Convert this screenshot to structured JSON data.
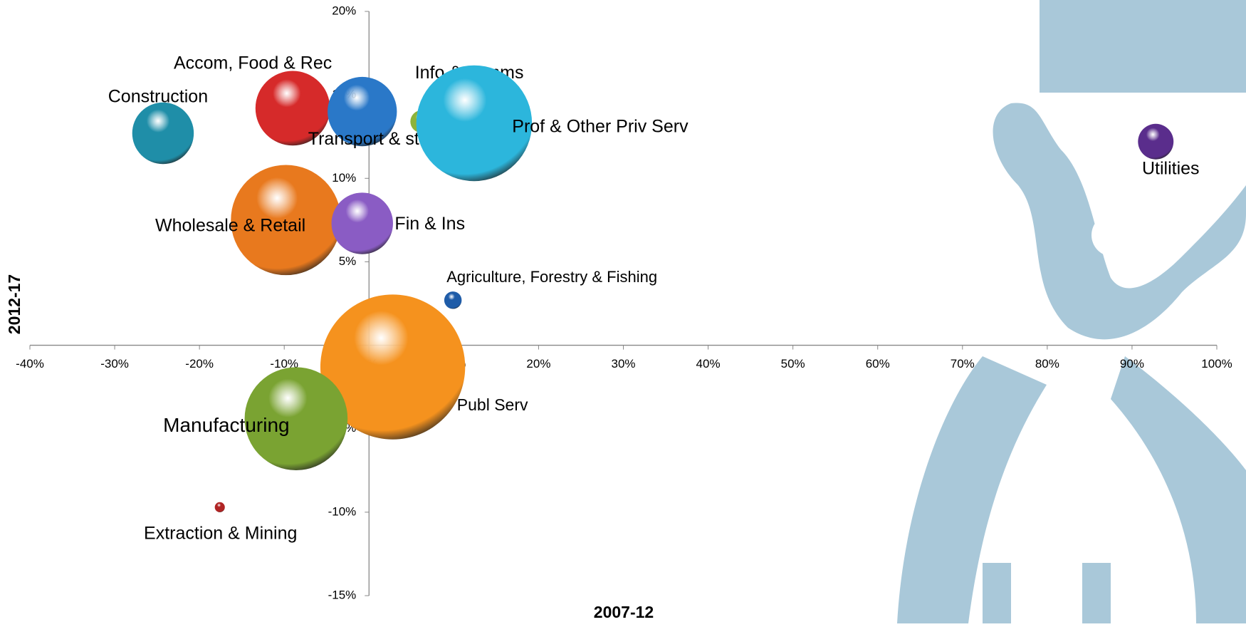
{
  "chart_data": {
    "type": "bubble",
    "x_label": "2007-12",
    "y_label": "2012-17",
    "xlim": [
      -40,
      100
    ],
    "xticks": [
      {
        "value": -40,
        "label": "-40%"
      },
      {
        "value": -30,
        "label": "-30%"
      },
      {
        "value": -20,
        "label": "-20%"
      },
      {
        "value": -10,
        "label": "-10%"
      },
      {
        "value": 0,
        "label": "0%"
      },
      {
        "value": 10,
        "label": "10%"
      },
      {
        "value": 20,
        "label": "20%"
      },
      {
        "value": 30,
        "label": "30%"
      },
      {
        "value": 40,
        "label": "40%"
      },
      {
        "value": 50,
        "label": "50%"
      },
      {
        "value": 60,
        "label": "60%"
      },
      {
        "value": 70,
        "label": "70%"
      },
      {
        "value": 80,
        "label": "80%"
      },
      {
        "value": 90,
        "label": "90%"
      },
      {
        "value": 100,
        "label": "100%"
      }
    ],
    "ylim": [
      -15,
      20
    ],
    "yticks": [
      {
        "value": -15,
        "label": "-15%"
      },
      {
        "value": -10,
        "label": "-10%"
      },
      {
        "value": -5,
        "label": "-5%"
      },
      {
        "value": 0,
        "label": "0%"
      },
      {
        "value": 5,
        "label": "5%"
      },
      {
        "value": 10,
        "label": "10%"
      },
      {
        "value": 15,
        "label": "15%"
      },
      {
        "value": 20,
        "label": "20%"
      }
    ],
    "points": [
      {
        "name": "Construction",
        "color": "#1f8ea8",
        "x": -24.3,
        "y": 12.7,
        "size": 15
      },
      {
        "name": "Accom, Food & Rec",
        "color": "#d62a2a",
        "x": -9.0,
        "y": 14.2,
        "size": 22
      },
      {
        "name": "Transport & storage",
        "color": "#2a78c8",
        "x": -0.8,
        "y": 14.0,
        "size": 19
      },
      {
        "name": "Info & comms",
        "color": "#8db33a",
        "x": 6.2,
        "y": 13.4,
        "size": 2
      },
      {
        "name": "Prof & Other Priv Serv",
        "color": "#2cb6dc",
        "x": 12.4,
        "y": 13.3,
        "size": 53
      },
      {
        "name": "Utilities",
        "color": "#5a2d8c",
        "x": 92.8,
        "y": 12.2,
        "size": 5
      },
      {
        "name": "Wholesale & Retail",
        "color": "#e8791e",
        "x": -9.8,
        "y": 7.5,
        "size": 48
      },
      {
        "name": "Fin & Ins",
        "color": "#8a5cc4",
        "x": -0.8,
        "y": 7.3,
        "size": 15
      },
      {
        "name": "Agriculture, Forestry & Fishing",
        "color": "#1f5ca8",
        "x": 9.9,
        "y": 2.7,
        "size": 1.2
      },
      {
        "name": "Publ Serv",
        "color": "#f5921e",
        "x": 2.8,
        "y": -1.3,
        "size": 83
      },
      {
        "name": "Manufacturing",
        "color": "#7aa332",
        "x": -8.6,
        "y": -4.4,
        "size": 42
      },
      {
        "name": "Extraction & Mining",
        "color": "#b02424",
        "x": -17.6,
        "y": -9.7,
        "size": 0.4
      }
    ]
  }
}
